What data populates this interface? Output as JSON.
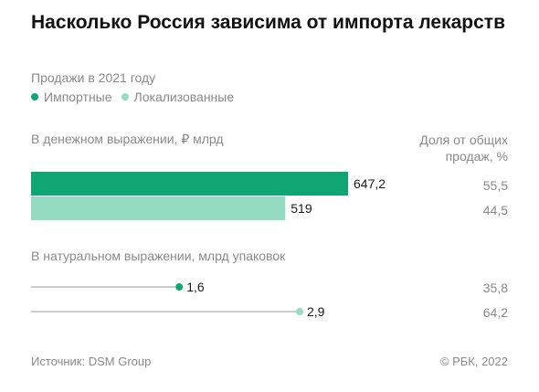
{
  "title": "Насколько Россия зависима от импорта лекарств",
  "subtitle": "Продажи в 2021 году",
  "legend": [
    {
      "label": "Импортные",
      "color": "#0fa673"
    },
    {
      "label": "Локализованные",
      "color": "#95dcc2"
    }
  ],
  "share_header": "Доля от общих продаж, %",
  "footer": {
    "source": "Источник: DSM Group",
    "copyright": "© РБК, 2022"
  },
  "chart_data": [
    {
      "type": "bar",
      "orientation": "horizontal",
      "section_label": "В денежном выражении, ₽ млрд",
      "series": [
        {
          "name": "Импортные",
          "value": 647.2,
          "label": "647,2",
          "share": "55,5",
          "color": "#0fa673"
        },
        {
          "name": "Локализованные",
          "value": 519,
          "label": "519",
          "share": "44,5",
          "color": "#95dcc2"
        }
      ],
      "max": 647.2
    },
    {
      "type": "lollipop",
      "orientation": "horizontal",
      "section_label": "В натуральном выражении, млрд упаковок",
      "series": [
        {
          "name": "Импортные",
          "value": 1.6,
          "label": "1,6",
          "share": "35,8",
          "color": "#0fa673"
        },
        {
          "name": "Локализованные",
          "value": 2.9,
          "label": "2,9",
          "share": "64,2",
          "color": "#95dcc2"
        }
      ],
      "max": 2.9
    }
  ]
}
